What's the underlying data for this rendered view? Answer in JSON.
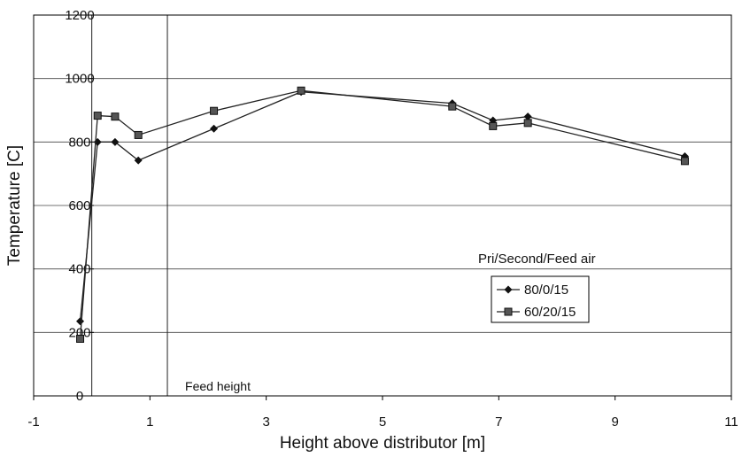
{
  "chart_data": {
    "type": "line",
    "title": "",
    "xlabel": "Height above distributor [m]",
    "ylabel": "Temperature [C]",
    "xlim": [
      -1,
      11
    ],
    "ylim": [
      0,
      1200
    ],
    "x_ticks": [
      -1,
      1,
      3,
      5,
      7,
      9,
      11
    ],
    "x_tick_labels": [
      "-1",
      "1",
      "3",
      "5",
      "7",
      "9",
      "11"
    ],
    "y_ticks": [
      0,
      200,
      400,
      600,
      800,
      1000,
      1200
    ],
    "y_tick_labels": [
      "0",
      "200",
      "400",
      "600",
      "800",
      "1000",
      "1200"
    ],
    "grid": "horizontal",
    "vertical_markers": [
      0.0,
      1.3
    ],
    "annotation": "Feed height",
    "legend_title": "Pri/Second/Feed air",
    "legend_position": "middle-right",
    "series": [
      {
        "name": "80/0/15",
        "marker": "diamond",
        "x": [
          -0.2,
          0.1,
          0.4,
          0.8,
          2.1,
          3.6,
          6.2,
          6.9,
          7.5,
          10.2
        ],
        "y": [
          235,
          800,
          800,
          742,
          842,
          958,
          922,
          868,
          880,
          755
        ]
      },
      {
        "name": "60/20/15",
        "marker": "square",
        "x": [
          -0.2,
          0.1,
          0.4,
          0.8,
          2.1,
          3.6,
          6.2,
          6.9,
          7.5,
          10.2
        ],
        "y": [
          180,
          883,
          880,
          822,
          898,
          962,
          912,
          850,
          860,
          740
        ]
      }
    ]
  }
}
